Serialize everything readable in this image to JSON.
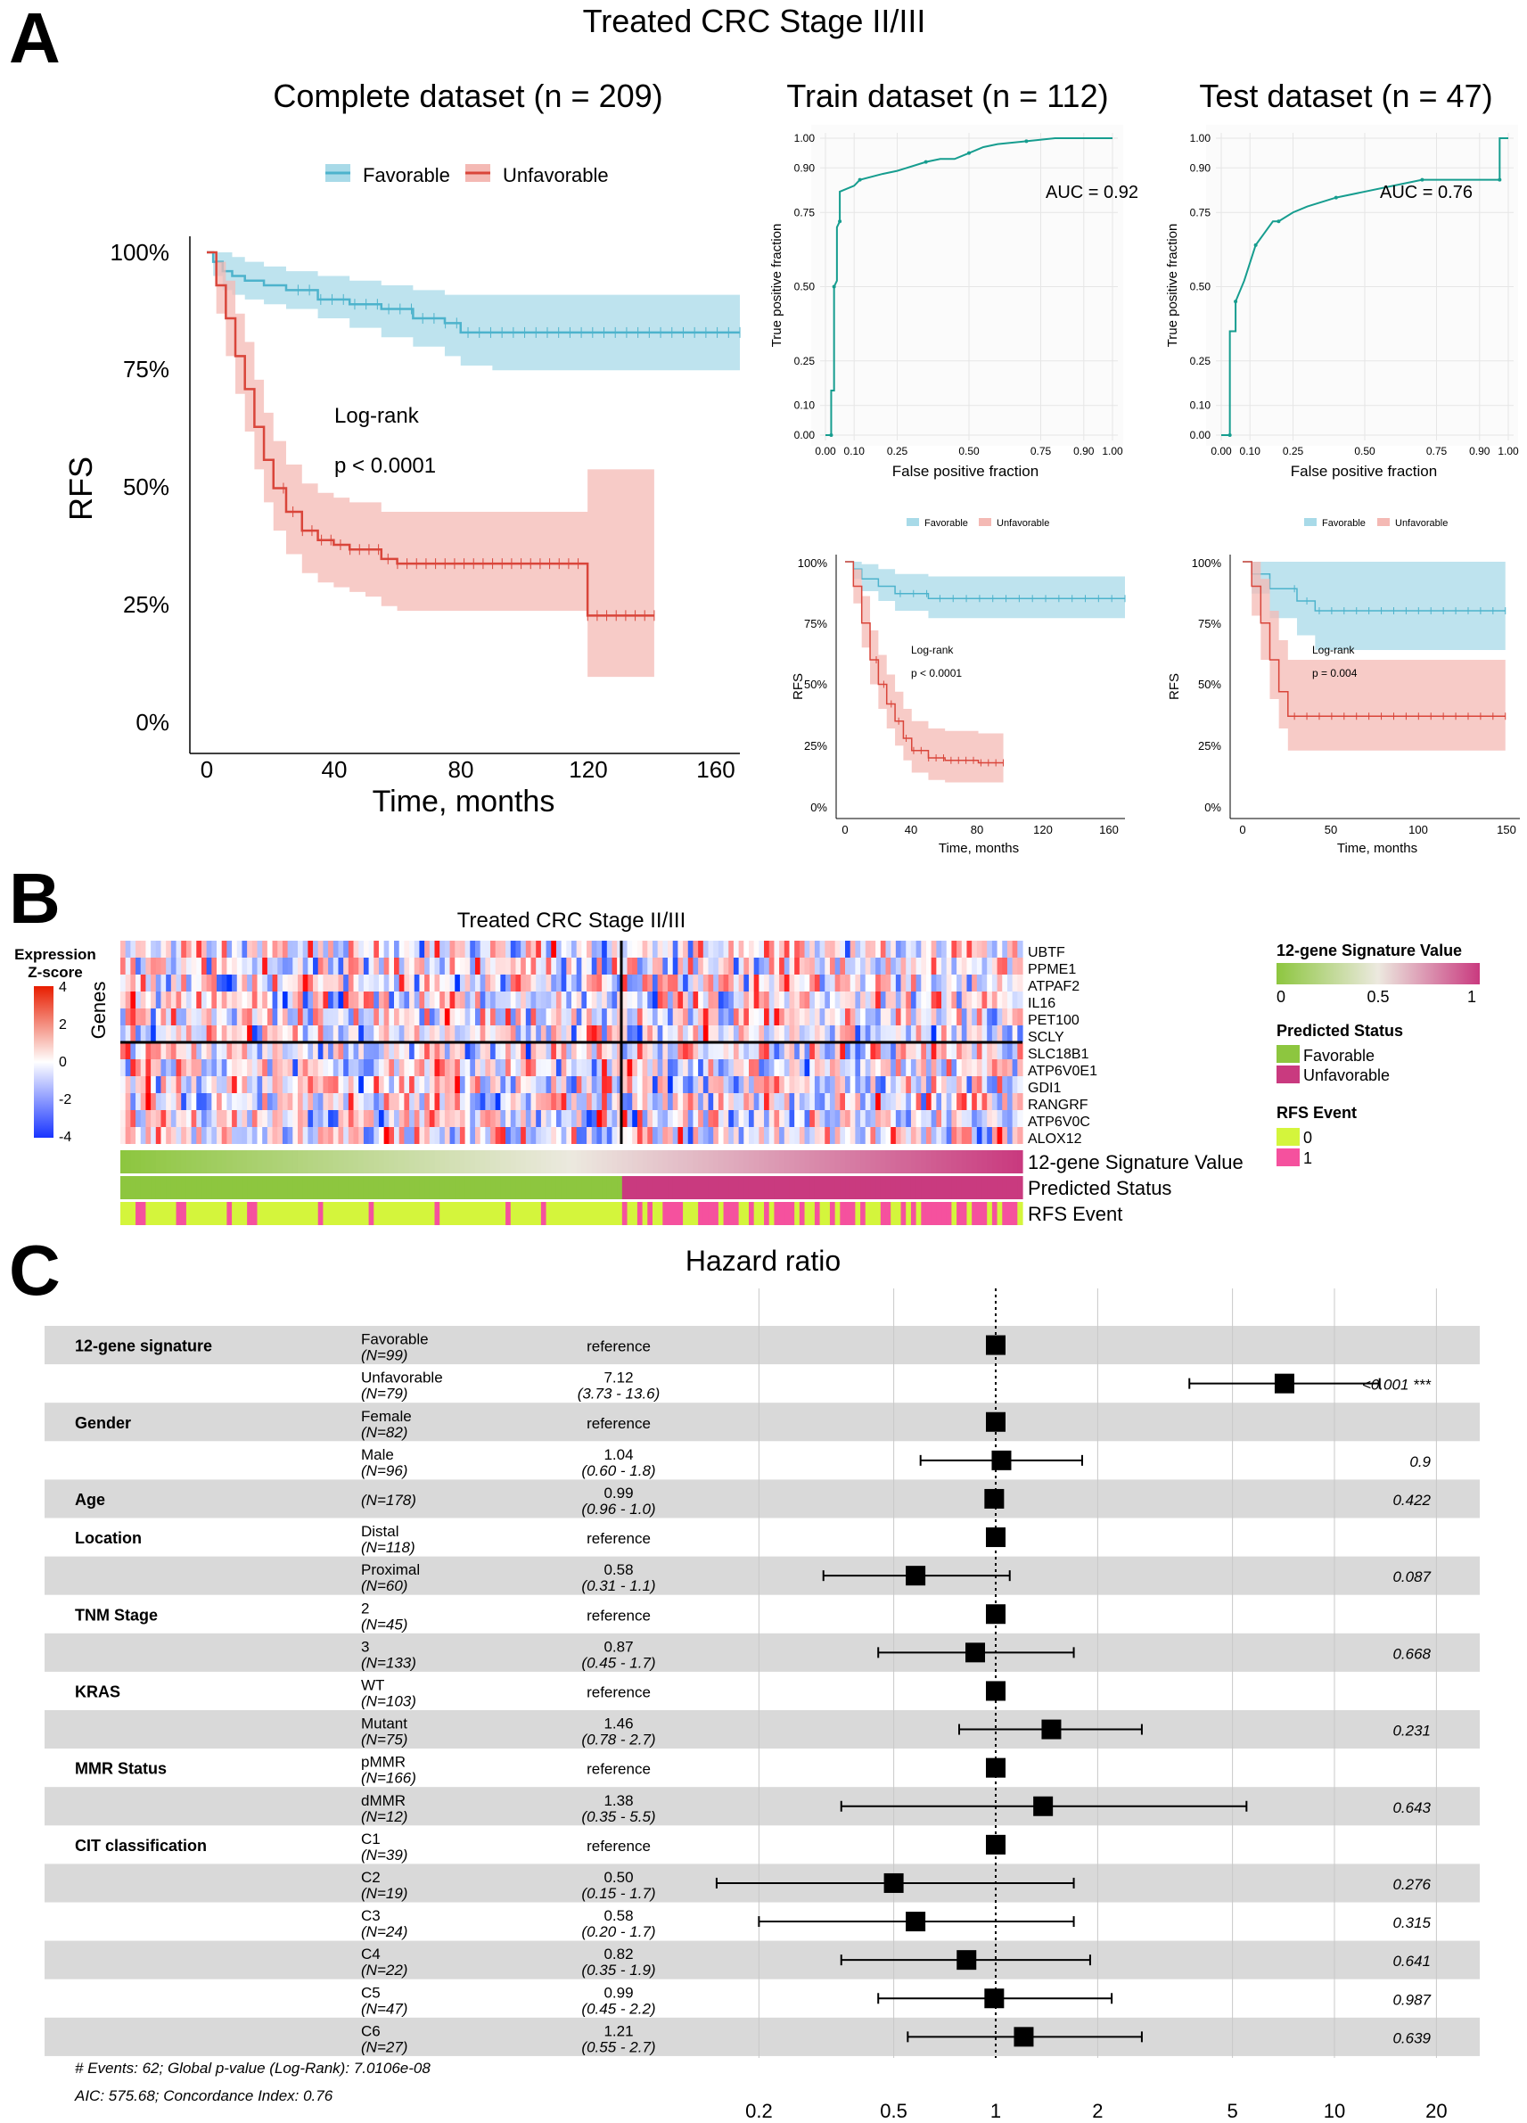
{
  "figure": {
    "main_title": "Treated CRC Stage II/III",
    "panels": {
      "a": "A",
      "b": "B",
      "c": "C"
    }
  },
  "km_main": {
    "title": "Complete dataset (n = 209)",
    "legend": [
      "Favorable",
      "Unfavorable"
    ],
    "ylabel": "RFS",
    "xlabel": "Time, months",
    "yticks": [
      "0%",
      "25%",
      "50%",
      "75%",
      "100%"
    ],
    "xticks": [
      "0",
      "40",
      "80",
      "120",
      "160"
    ],
    "logrank": "Log-rank",
    "pval": "p < 0.0001"
  },
  "train": {
    "title": "Train dataset (n = 112)",
    "auc": "AUC = 0.92",
    "km_pval": "p < 0.0001",
    "km_xticks": [
      "0",
      "40",
      "80",
      "120",
      "160"
    ]
  },
  "test": {
    "title": "Test dataset (n = 47)",
    "auc": "AUC = 0.76",
    "km_pval": "p = 0.004",
    "km_xticks": [
      "0",
      "50",
      "100",
      "150"
    ]
  },
  "roc_common": {
    "ylabel": "True positive fraction",
    "xlabel": "False positive fraction",
    "yticks": [
      "0.00",
      "0.10",
      "0.25",
      "0.50",
      "0.75",
      "0.90",
      "1.00"
    ],
    "xticks": [
      "0.00",
      "0.10",
      "0.25",
      "0.50",
      "0.75",
      "0.90",
      "1.00"
    ]
  },
  "km_small_common": {
    "legend": [
      "Favorable",
      "Unfavorable"
    ],
    "ylabel": "RFS",
    "xlabel": "Time, months",
    "yticks": [
      "0%",
      "25%",
      "50%",
      "75%",
      "100%"
    ],
    "logrank": "Log-rank"
  },
  "heatmap": {
    "title": "Treated CRC Stage II/III",
    "ylabel": "Genes",
    "zscore_title1": "Expression",
    "zscore_title2": "Z-score",
    "zscore_ticks": [
      "4",
      "2",
      "0",
      "-2",
      "-4"
    ],
    "genes": [
      "UBTF",
      "PPME1",
      "ATPAF2",
      "IL16",
      "PET100",
      "SCLY",
      "SLC18B1",
      "ATP6V0E1",
      "GDI1",
      "RANGRF",
      "ATP6V0C",
      "ALOX12"
    ],
    "annotations": [
      "12-gene Signature Value",
      "Predicted Status",
      "RFS Event"
    ],
    "legend_sig_title": "12-gene Signature Value",
    "legend_sig_ticks": [
      "0",
      "0.5",
      "1"
    ],
    "legend_status_title": "Predicted Status",
    "legend_status_items": [
      "Favorable",
      "Unfavorable"
    ],
    "legend_event_title": "RFS Event",
    "legend_event_items": [
      "0",
      "1"
    ]
  },
  "forest": {
    "title": "Hazard ratio",
    "rows": [
      {
        "var": "12-gene signature",
        "level": "Favorable",
        "n": "(N=99)",
        "hr": "reference",
        "ci": "",
        "p": "",
        "est": 1
      },
      {
        "var": "",
        "level": "Unfavorable",
        "n": "(N=79)",
        "hr": "7.12",
        "ci": "(3.73 - 13.6)",
        "p": "<0.001 ***",
        "est": 7.12,
        "lo": 3.73,
        "hi": 13.6
      },
      {
        "var": "Gender",
        "level": "Female",
        "n": "(N=82)",
        "hr": "reference",
        "ci": "",
        "p": "",
        "est": 1
      },
      {
        "var": "",
        "level": "Male",
        "n": "(N=96)",
        "hr": "1.04",
        "ci": "(0.60 -  1.8)",
        "p": "0.9",
        "est": 1.04,
        "lo": 0.6,
        "hi": 1.8
      },
      {
        "var": "Age",
        "level": "",
        "n": "(N=178)",
        "hr": "0.99",
        "ci": "(0.96 -  1.0)",
        "p": "0.422",
        "est": 0.99,
        "lo": 0.96,
        "hi": 1.0
      },
      {
        "var": "Location",
        "level": "Distal",
        "n": "(N=118)",
        "hr": "reference",
        "ci": "",
        "p": "",
        "est": 1
      },
      {
        "var": "",
        "level": "Proximal",
        "n": "(N=60)",
        "hr": "0.58",
        "ci": "(0.31 -  1.1)",
        "p": "0.087",
        "est": 0.58,
        "lo": 0.31,
        "hi": 1.1
      },
      {
        "var": "TNM Stage",
        "level": "2",
        "n": "(N=45)",
        "hr": "reference",
        "ci": "",
        "p": "",
        "est": 1
      },
      {
        "var": "",
        "level": "3",
        "n": "(N=133)",
        "hr": "0.87",
        "ci": "(0.45 -  1.7)",
        "p": "0.668",
        "est": 0.87,
        "lo": 0.45,
        "hi": 1.7
      },
      {
        "var": "KRAS",
        "level": "WT",
        "n": "(N=103)",
        "hr": "reference",
        "ci": "",
        "p": "",
        "est": 1
      },
      {
        "var": "",
        "level": "Mutant",
        "n": "(N=75)",
        "hr": "1.46",
        "ci": "(0.78 -  2.7)",
        "p": "0.231",
        "est": 1.46,
        "lo": 0.78,
        "hi": 2.7
      },
      {
        "var": "MMR Status",
        "level": "pMMR",
        "n": "(N=166)",
        "hr": "reference",
        "ci": "",
        "p": "",
        "est": 1
      },
      {
        "var": "",
        "level": "dMMR",
        "n": "(N=12)",
        "hr": "1.38",
        "ci": "(0.35 -  5.5)",
        "p": "0.643",
        "est": 1.38,
        "lo": 0.35,
        "hi": 5.5
      },
      {
        "var": "CIT classification",
        "level": "C1",
        "n": "(N=39)",
        "hr": "reference",
        "ci": "",
        "p": "",
        "est": 1
      },
      {
        "var": "",
        "level": "C2",
        "n": "(N=19)",
        "hr": "0.50",
        "ci": "(0.15 -  1.7)",
        "p": "0.276",
        "est": 0.5,
        "lo": 0.15,
        "hi": 1.7
      },
      {
        "var": "",
        "level": "C3",
        "n": "(N=24)",
        "hr": "0.58",
        "ci": "(0.20 -  1.7)",
        "p": "0.315",
        "est": 0.58,
        "lo": 0.2,
        "hi": 1.7
      },
      {
        "var": "",
        "level": "C4",
        "n": "(N=22)",
        "hr": "0.82",
        "ci": "(0.35 -  1.9)",
        "p": "0.641",
        "est": 0.82,
        "lo": 0.35,
        "hi": 1.9
      },
      {
        "var": "",
        "level": "C5",
        "n": "(N=47)",
        "hr": "0.99",
        "ci": "(0.45 -  2.2)",
        "p": "0.987",
        "est": 0.99,
        "lo": 0.45,
        "hi": 2.2
      },
      {
        "var": "",
        "level": "C6",
        "n": "(N=27)",
        "hr": "1.21",
        "ci": "(0.55 -  2.7)",
        "p": "0.639",
        "est": 1.21,
        "lo": 0.55,
        "hi": 2.7
      }
    ],
    "xticks": [
      "0.2",
      "0.5",
      "1",
      "2",
      "5",
      "10",
      "20"
    ],
    "footer1": "# Events: 62; Global p-value (Log-Rank): 7.0106e-08",
    "footer2": "AIC: 575.68; Concordance Index: 0.76"
  },
  "colors": {
    "fav": "#4db3cc",
    "fav_band": "#a8dae8",
    "unf": "#d9453a",
    "unf_band": "#f4b9b4",
    "roc": "#169d8f",
    "green": "#8dc63f",
    "magenta": "#c93a7f",
    "lime": "#d4f53c",
    "pink": "#f5519e",
    "forest_band": "#d9d9d9"
  },
  "chart_data": [
    {
      "type": "line",
      "name": "km-complete",
      "title": "Complete dataset (n = 209)",
      "xlabel": "Time, months",
      "ylabel": "RFS",
      "xlim": [
        0,
        168
      ],
      "ylim": [
        0,
        1
      ],
      "series": [
        {
          "name": "Favorable",
          "x": [
            0,
            2,
            5,
            8,
            12,
            18,
            25,
            35,
            45,
            55,
            65,
            75,
            80,
            90,
            100,
            120,
            140,
            168
          ],
          "y": [
            1,
            0.98,
            0.96,
            0.95,
            0.94,
            0.93,
            0.92,
            0.9,
            0.89,
            0.88,
            0.86,
            0.85,
            0.83,
            0.83,
            0.83,
            0.83,
            0.83,
            0.83
          ],
          "lo": [
            1,
            0.95,
            0.92,
            0.91,
            0.9,
            0.89,
            0.88,
            0.86,
            0.84,
            0.82,
            0.8,
            0.78,
            0.76,
            0.75,
            0.75,
            0.75,
            0.75,
            0.75
          ],
          "hi": [
            1,
            1,
            1,
            0.99,
            0.98,
            0.97,
            0.96,
            0.95,
            0.94,
            0.93,
            0.92,
            0.91,
            0.91,
            0.91,
            0.91,
            0.91,
            0.91,
            0.91
          ]
        },
        {
          "name": "Unfavorable",
          "x": [
            0,
            3,
            6,
            9,
            12,
            15,
            18,
            21,
            25,
            30,
            35,
            40,
            45,
            50,
            55,
            60,
            80,
            100,
            119,
            120,
            141
          ],
          "y": [
            1,
            0.93,
            0.86,
            0.78,
            0.71,
            0.63,
            0.56,
            0.5,
            0.45,
            0.41,
            0.39,
            0.38,
            0.37,
            0.37,
            0.35,
            0.34,
            0.34,
            0.34,
            0.34,
            0.23,
            0.23
          ],
          "lo": [
            1,
            0.87,
            0.78,
            0.7,
            0.62,
            0.54,
            0.47,
            0.41,
            0.36,
            0.32,
            0.3,
            0.29,
            0.28,
            0.27,
            0.25,
            0.24,
            0.24,
            0.24,
            0.24,
            0.1,
            0.1
          ],
          "hi": [
            1,
            0.98,
            0.94,
            0.87,
            0.81,
            0.73,
            0.66,
            0.6,
            0.55,
            0.51,
            0.49,
            0.48,
            0.47,
            0.47,
            0.45,
            0.45,
            0.45,
            0.45,
            0.45,
            0.54,
            0.54
          ]
        }
      ]
    },
    {
      "type": "line",
      "name": "roc-train",
      "xlim": [
        0,
        1
      ],
      "ylim": [
        0,
        1
      ],
      "x": [
        0,
        0.02,
        0.02,
        0.03,
        0.03,
        0.04,
        0.04,
        0.05,
        0.05,
        0.1,
        0.12,
        0.2,
        0.25,
        0.35,
        0.4,
        0.45,
        0.5,
        0.55,
        0.6,
        0.7,
        0.8,
        1.0
      ],
      "y": [
        0,
        0,
        0.15,
        0.15,
        0.5,
        0.52,
        0.7,
        0.72,
        0.82,
        0.84,
        0.86,
        0.88,
        0.89,
        0.92,
        0.93,
        0.93,
        0.95,
        0.97,
        0.98,
        0.99,
        1.0,
        1.0
      ]
    },
    {
      "type": "line",
      "name": "roc-test",
      "xlim": [
        0,
        1
      ],
      "ylim": [
        0,
        1
      ],
      "x": [
        0,
        0.03,
        0.03,
        0.05,
        0.05,
        0.08,
        0.1,
        0.12,
        0.15,
        0.18,
        0.2,
        0.25,
        0.3,
        0.4,
        0.5,
        0.6,
        0.7,
        0.8,
        0.9,
        0.97,
        0.97,
        1.0
      ],
      "y": [
        0,
        0,
        0.35,
        0.35,
        0.45,
        0.52,
        0.58,
        0.64,
        0.68,
        0.72,
        0.72,
        0.75,
        0.77,
        0.8,
        0.82,
        0.84,
        0.86,
        0.86,
        0.86,
        0.86,
        1.0,
        1.0
      ]
    },
    {
      "type": "line",
      "name": "km-train",
      "xlim": [
        0,
        168
      ],
      "ylim": [
        0,
        1
      ],
      "series": [
        {
          "name": "Favorable",
          "x": [
            0,
            5,
            10,
            20,
            30,
            50,
            168
          ],
          "y": [
            1,
            0.97,
            0.93,
            0.9,
            0.87,
            0.85,
            0.85
          ],
          "lo": [
            1,
            0.93,
            0.88,
            0.84,
            0.8,
            0.77,
            0.77
          ],
          "hi": [
            1,
            1,
            0.99,
            0.97,
            0.95,
            0.94,
            0.94
          ]
        },
        {
          "name": "Unfavorable",
          "x": [
            0,
            5,
            10,
            15,
            20,
            25,
            30,
            35,
            40,
            50,
            60,
            80,
            95
          ],
          "y": [
            1,
            0.9,
            0.75,
            0.6,
            0.5,
            0.42,
            0.35,
            0.28,
            0.23,
            0.2,
            0.19,
            0.18,
            0.18
          ],
          "lo": [
            1,
            0.83,
            0.65,
            0.5,
            0.4,
            0.32,
            0.25,
            0.19,
            0.14,
            0.11,
            0.1,
            0.1,
            0.1
          ],
          "hi": [
            1,
            0.97,
            0.86,
            0.72,
            0.62,
            0.54,
            0.47,
            0.4,
            0.35,
            0.32,
            0.31,
            0.3,
            0.3
          ]
        }
      ]
    },
    {
      "type": "line",
      "name": "km-test",
      "xlim": [
        0,
        153
      ],
      "ylim": [
        0,
        1
      ],
      "series": [
        {
          "name": "Favorable",
          "x": [
            0,
            5,
            15,
            30,
            40,
            145
          ],
          "y": [
            1,
            0.95,
            0.89,
            0.84,
            0.8,
            0.8
          ],
          "lo": [
            1,
            0.87,
            0.77,
            0.7,
            0.64,
            0.64
          ],
          "hi": [
            1,
            1,
            1,
            1,
            1,
            1
          ]
        },
        {
          "name": "Unfavorable",
          "x": [
            0,
            5,
            10,
            15,
            20,
            25,
            145
          ],
          "y": [
            1,
            0.9,
            0.75,
            0.6,
            0.47,
            0.37,
            0.37
          ],
          "lo": [
            1,
            0.78,
            0.6,
            0.44,
            0.32,
            0.23,
            0.23
          ],
          "hi": [
            1,
            1,
            0.93,
            0.8,
            0.68,
            0.6,
            0.6
          ]
        }
      ]
    },
    {
      "type": "heatmap",
      "name": "expression",
      "genes": [
        "UBTF",
        "PPME1",
        "ATPAF2",
        "IL16",
        "PET100",
        "SCLY",
        "SLC18B1",
        "ATP6V0E1",
        "GDI1",
        "RANGRF",
        "ATP6V0C",
        "ALOX12"
      ],
      "zlim": [
        -4,
        4
      ],
      "n_samples": 178
    },
    {
      "type": "scatter",
      "name": "forest",
      "xscale": "log",
      "xlim": [
        0.15,
        25
      ],
      "labels": [
        "Favorable",
        "Unfavorable",
        "Female",
        "Male",
        "Age",
        "Distal",
        "Proximal",
        "2",
        "3",
        "WT",
        "Mutant",
        "pMMR",
        "dMMR",
        "C1",
        "C2",
        "C3",
        "C4",
        "C5",
        "C6"
      ],
      "values": [
        1,
        7.12,
        1,
        1.04,
        0.99,
        1,
        0.58,
        1,
        0.87,
        1,
        1.46,
        1,
        1.38,
        1,
        0.5,
        0.58,
        0.82,
        0.99,
        1.21
      ]
    }
  ]
}
